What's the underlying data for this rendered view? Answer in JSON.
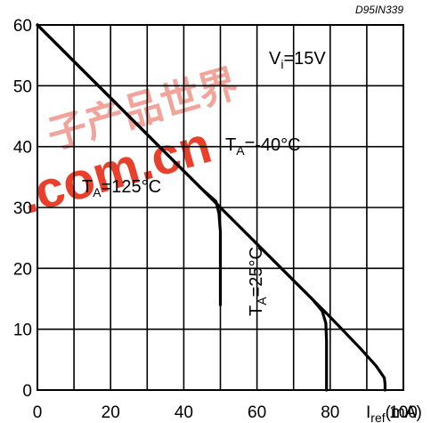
{
  "chart_data": {
    "type": "line",
    "x_unit_label": {
      "symbol": "I",
      "subscript": "ref",
      "unit": "(mA)"
    },
    "xlim": [
      0,
      100
    ],
    "ylim": [
      0,
      60
    ],
    "x_ticks": [
      0,
      20,
      40,
      60,
      80,
      100
    ],
    "y_ticks": [
      0,
      10,
      20,
      30,
      40,
      50,
      60
    ],
    "grid": true,
    "figure_code": "D95IN339",
    "condition": {
      "symbol": "V",
      "subscript": "i",
      "value": "=15V"
    },
    "series": [
      {
        "name": "TA=125°C",
        "label_parts": {
          "symbol": "T",
          "subscript": "A",
          "value": "=125°C"
        },
        "x": [
          0,
          10,
          20,
          30,
          40,
          45,
          48.8,
          49.6,
          50.0,
          50.0
        ],
        "y": [
          60,
          54,
          48,
          42,
          36,
          33,
          31,
          29,
          26,
          14
        ]
      },
      {
        "name": "TA=25°C",
        "label_parts": {
          "symbol": "T",
          "subscript": "A",
          "value": "=25°C"
        },
        "x": [
          0,
          10,
          20,
          30,
          40,
          50,
          60,
          70,
          75,
          77.8,
          78.8,
          79.0,
          79.0
        ],
        "y": [
          60,
          54,
          48,
          42,
          36,
          30,
          24,
          18,
          15,
          13,
          11,
          8,
          0
        ]
      },
      {
        "name": "TA=-40°C",
        "label_parts": {
          "symbol": "T",
          "subscript": "A",
          "value": "=-40°C"
        },
        "x": [
          0,
          10,
          20,
          30,
          40,
          50,
          60,
          70,
          80,
          88,
          92.5,
          94.8,
          95.0,
          95.0
        ],
        "y": [
          60,
          54,
          48,
          42,
          36,
          30,
          24,
          18,
          12,
          7,
          4,
          2,
          1,
          0
        ]
      }
    ]
  },
  "watermark": {
    "main": ".com.cn",
    "cjk": "子产品世界"
  }
}
